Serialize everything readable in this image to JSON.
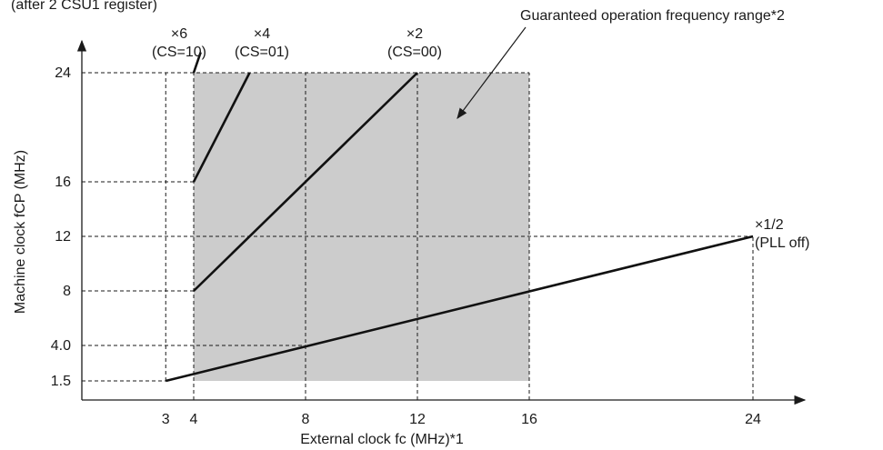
{
  "chart_data": {
    "type": "line",
    "top_text": "(after 2 CSU1 register)",
    "xlabel": "External clock fc (MHz)*1",
    "ylabel": "Machine clock fCP (MHz)",
    "x_ticks": [
      3,
      4,
      8,
      12,
      16,
      24
    ],
    "y_ticks": [
      1.5,
      4.0,
      8,
      12,
      16,
      24
    ],
    "y_tick_labels": [
      "1.5",
      "4.0",
      "8",
      "12",
      "16",
      "24"
    ],
    "x_tick_labels": [
      "3",
      "4",
      "8",
      "12",
      "16",
      "24"
    ],
    "guaranteed_region": {
      "label": "Guaranteed operation frequency range*2",
      "x": [
        4,
        16
      ],
      "y": [
        1.5,
        24
      ]
    },
    "series": [
      {
        "name": "×6 (CS=10)",
        "label_lines": [
          "×6",
          "(CS=10)"
        ],
        "x": [
          4,
          4.25
        ],
        "y": [
          24,
          25.5
        ]
      },
      {
        "name": "×4 (CS=01)",
        "label_lines": [
          "×4",
          "(CS=01)"
        ],
        "x": [
          4,
          6
        ],
        "y": [
          16,
          24
        ]
      },
      {
        "name": "×2 (CS=00)",
        "label_lines": [
          "×2",
          "(CS=00)"
        ],
        "x": [
          4,
          12
        ],
        "y": [
          8,
          24
        ]
      },
      {
        "name": "×1/2 (PLL off)",
        "label_lines": [
          "×1/2",
          "(PLL off)"
        ],
        "x": [
          3,
          24
        ],
        "y": [
          1.5,
          12
        ]
      }
    ],
    "grid": false,
    "legend": "none"
  }
}
